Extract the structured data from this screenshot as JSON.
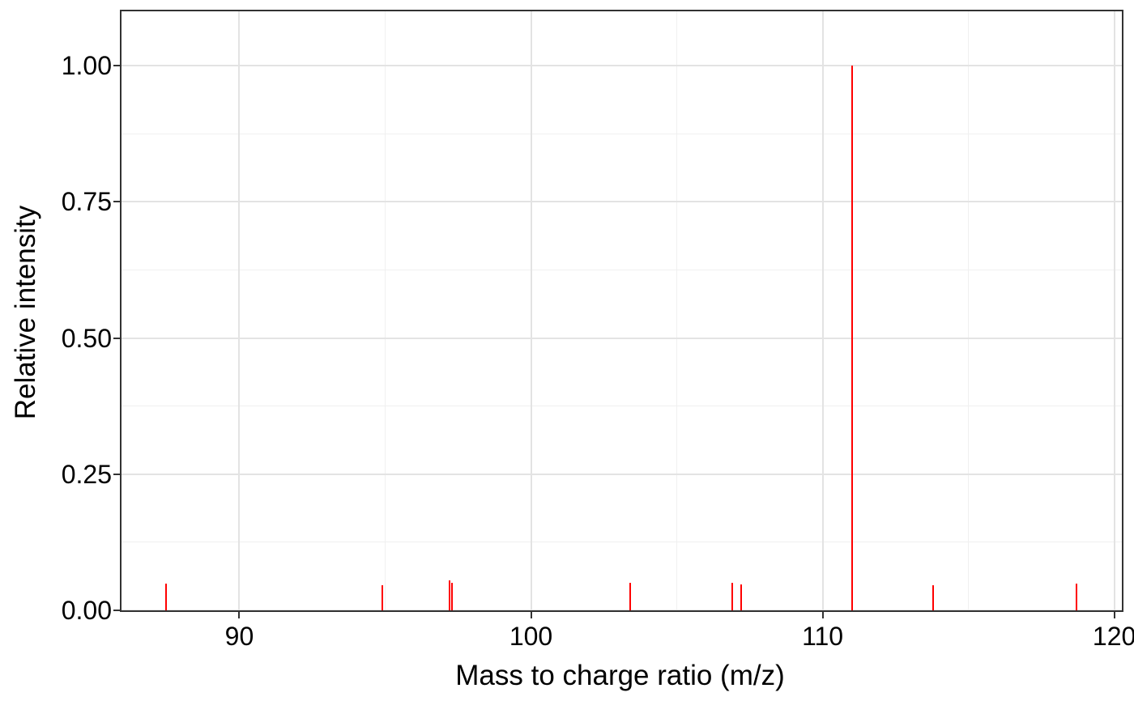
{
  "chart_data": {
    "type": "bar",
    "subtype": "mass-spectrum-stick-plot",
    "title": "",
    "xlabel": "Mass to charge ratio (m/z)",
    "ylabel": "Relative intensity",
    "xlim": [
      85.96,
      120.26
    ],
    "ylim": [
      0,
      1.1
    ],
    "grid": "on",
    "legend": "none",
    "x_axis": {
      "major_ticks": [
        {
          "value": 90,
          "label": "90"
        },
        {
          "value": 100,
          "label": "100"
        },
        {
          "value": 110,
          "label": "110"
        },
        {
          "value": 120,
          "label": "120"
        }
      ],
      "minor_ticks": [
        95,
        105,
        115
      ]
    },
    "y_axis": {
      "major_ticks": [
        {
          "value": 0.0,
          "label": "0.00"
        },
        {
          "value": 0.25,
          "label": "0.25"
        },
        {
          "value": 0.5,
          "label": "0.50"
        },
        {
          "value": 0.75,
          "label": "0.75"
        },
        {
          "value": 1.0,
          "label": "1.00"
        }
      ],
      "minor_ticks": [
        0.125,
        0.375,
        0.625,
        0.875
      ]
    },
    "series": [
      {
        "name": "fragment-peaks",
        "points": [
          {
            "mz": 87.5,
            "intensity": 0.049
          },
          {
            "mz": 94.9,
            "intensity": 0.046
          },
          {
            "mz": 97.2,
            "intensity": 0.055
          },
          {
            "mz": 97.3,
            "intensity": 0.051
          },
          {
            "mz": 103.4,
            "intensity": 0.05
          },
          {
            "mz": 106.9,
            "intensity": 0.051
          },
          {
            "mz": 107.2,
            "intensity": 0.048
          },
          {
            "mz": 111.0,
            "intensity": 1.0
          },
          {
            "mz": 113.8,
            "intensity": 0.046
          },
          {
            "mz": 118.7,
            "intensity": 0.049
          }
        ]
      }
    ],
    "colors": {
      "peak": "#FF0000",
      "panel_border": "#333333",
      "grid_major": "#E3E3E3",
      "grid_minor": "#F0F0F0",
      "background": "#FFFFFF",
      "text": "#000000"
    }
  }
}
